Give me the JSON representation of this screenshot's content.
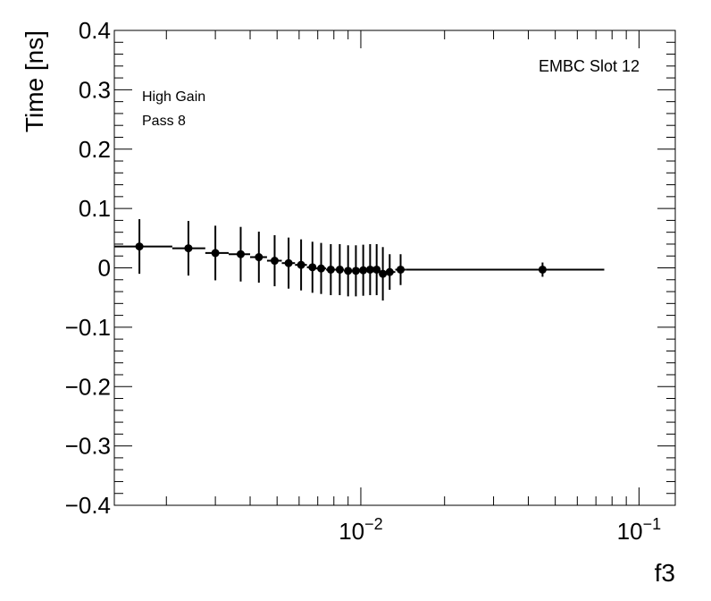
{
  "chart_data": {
    "type": "scatter",
    "title": "",
    "xlabel": "f3",
    "ylabel": "Time [ns]",
    "xscale": "log",
    "xlim": [
      0.0013,
      0.135
    ],
    "ylim": [
      -0.4,
      0.4
    ],
    "grid": false,
    "legend": "none",
    "yticks": [
      {
        "value": 0.4,
        "label": "0.4"
      },
      {
        "value": 0.3,
        "label": "0.3"
      },
      {
        "value": 0.2,
        "label": "0.2"
      },
      {
        "value": 0.1,
        "label": "0.1"
      },
      {
        "value": 0,
        "label": "0"
      },
      {
        "value": -0.1,
        "label": "−0.1"
      },
      {
        "value": -0.2,
        "label": "−0.2"
      },
      {
        "value": -0.3,
        "label": "−0.3"
      },
      {
        "value": -0.4,
        "label": "−0.4"
      }
    ],
    "xticks": [
      {
        "value": 0.01,
        "base": "10",
        "exp": "−2"
      },
      {
        "value": 0.1,
        "base": "10",
        "exp": "−1"
      }
    ],
    "annotations": {
      "top_right": "EMBC Slot 12",
      "line1": "High Gain",
      "line2": "Pass 8"
    },
    "points": [
      {
        "x": 0.0016,
        "y": 0.036,
        "xlo": 0.0013,
        "xhi": 0.0021,
        "err": 0.046
      },
      {
        "x": 0.0024,
        "y": 0.033,
        "xlo": 0.0021,
        "xhi": 0.00276,
        "err": 0.046
      },
      {
        "x": 0.003,
        "y": 0.025,
        "xlo": 0.00276,
        "xhi": 0.00335,
        "err": 0.046
      },
      {
        "x": 0.0037,
        "y": 0.023,
        "xlo": 0.00335,
        "xhi": 0.004,
        "err": 0.046
      },
      {
        "x": 0.0043,
        "y": 0.018,
        "xlo": 0.004,
        "xhi": 0.0046,
        "err": 0.043
      },
      {
        "x": 0.0049,
        "y": 0.012,
        "xlo": 0.0046,
        "xhi": 0.0052,
        "err": 0.043
      },
      {
        "x": 0.0055,
        "y": 0.008,
        "xlo": 0.0052,
        "xhi": 0.0058,
        "err": 0.043
      },
      {
        "x": 0.0061,
        "y": 0.005,
        "xlo": 0.0058,
        "xhi": 0.0064,
        "err": 0.043
      },
      {
        "x": 0.0067,
        "y": 0.001,
        "xlo": 0.0064,
        "xhi": 0.0069,
        "err": 0.043
      },
      {
        "x": 0.0072,
        "y": -0.001,
        "xlo": 0.0069,
        "xhi": 0.0075,
        "err": 0.043
      },
      {
        "x": 0.0078,
        "y": -0.003,
        "xlo": 0.0075,
        "xhi": 0.0081,
        "err": 0.043
      },
      {
        "x": 0.0084,
        "y": -0.003,
        "xlo": 0.0081,
        "xhi": 0.0087,
        "err": 0.043
      },
      {
        "x": 0.009,
        "y": -0.005,
        "xlo": 0.0087,
        "xhi": 0.0093,
        "err": 0.043
      },
      {
        "x": 0.0096,
        "y": -0.005,
        "xlo": 0.0093,
        "xhi": 0.0099,
        "err": 0.043
      },
      {
        "x": 0.0102,
        "y": -0.004,
        "xlo": 0.0099,
        "xhi": 0.0105,
        "err": 0.043
      },
      {
        "x": 0.0108,
        "y": -0.003,
        "xlo": 0.0105,
        "xhi": 0.0111,
        "err": 0.043
      },
      {
        "x": 0.0114,
        "y": -0.003,
        "xlo": 0.0111,
        "xhi": 0.0117,
        "err": 0.043
      },
      {
        "x": 0.012,
        "y": -0.01,
        "xlo": 0.0117,
        "xhi": 0.0124,
        "err": 0.045
      },
      {
        "x": 0.0127,
        "y": -0.007,
        "xlo": 0.0124,
        "xhi": 0.0133,
        "err": 0.03
      },
      {
        "x": 0.0139,
        "y": -0.003,
        "xlo": 0.0133,
        "xhi": 0.0145,
        "err": 0.026
      },
      {
        "x": 0.045,
        "y": -0.003,
        "xlo": 0.0145,
        "xhi": 0.075,
        "err": 0.012
      }
    ]
  }
}
